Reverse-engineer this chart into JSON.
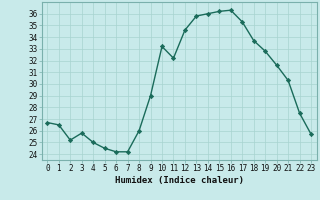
{
  "x": [
    0,
    1,
    2,
    3,
    4,
    5,
    6,
    7,
    8,
    9,
    10,
    11,
    12,
    13,
    14,
    15,
    16,
    17,
    18,
    19,
    20,
    21,
    22,
    23
  ],
  "y": [
    26.7,
    26.5,
    25.2,
    25.8,
    25.0,
    24.5,
    24.2,
    24.2,
    26.0,
    29.0,
    33.2,
    32.2,
    34.6,
    35.8,
    36.0,
    36.2,
    36.3,
    35.3,
    33.7,
    32.8,
    31.6,
    30.3,
    27.5,
    25.7
  ],
  "xlabel": "Humidex (Indice chaleur)",
  "ylim_min": 23.5,
  "ylim_max": 37.0,
  "yticks": [
    24,
    25,
    26,
    27,
    28,
    29,
    30,
    31,
    32,
    33,
    34,
    35,
    36
  ],
  "xticks": [
    0,
    1,
    2,
    3,
    4,
    5,
    6,
    7,
    8,
    9,
    10,
    11,
    12,
    13,
    14,
    15,
    16,
    17,
    18,
    19,
    20,
    21,
    22,
    23
  ],
  "line_color": "#1a6b5a",
  "marker": "D",
  "marker_size": 2.2,
  "bg_color": "#c8eaea",
  "grid_color": "#a8d4d0",
  "line_width": 1.0,
  "tick_fontsize": 5.5,
  "xlabel_fontsize": 6.5
}
